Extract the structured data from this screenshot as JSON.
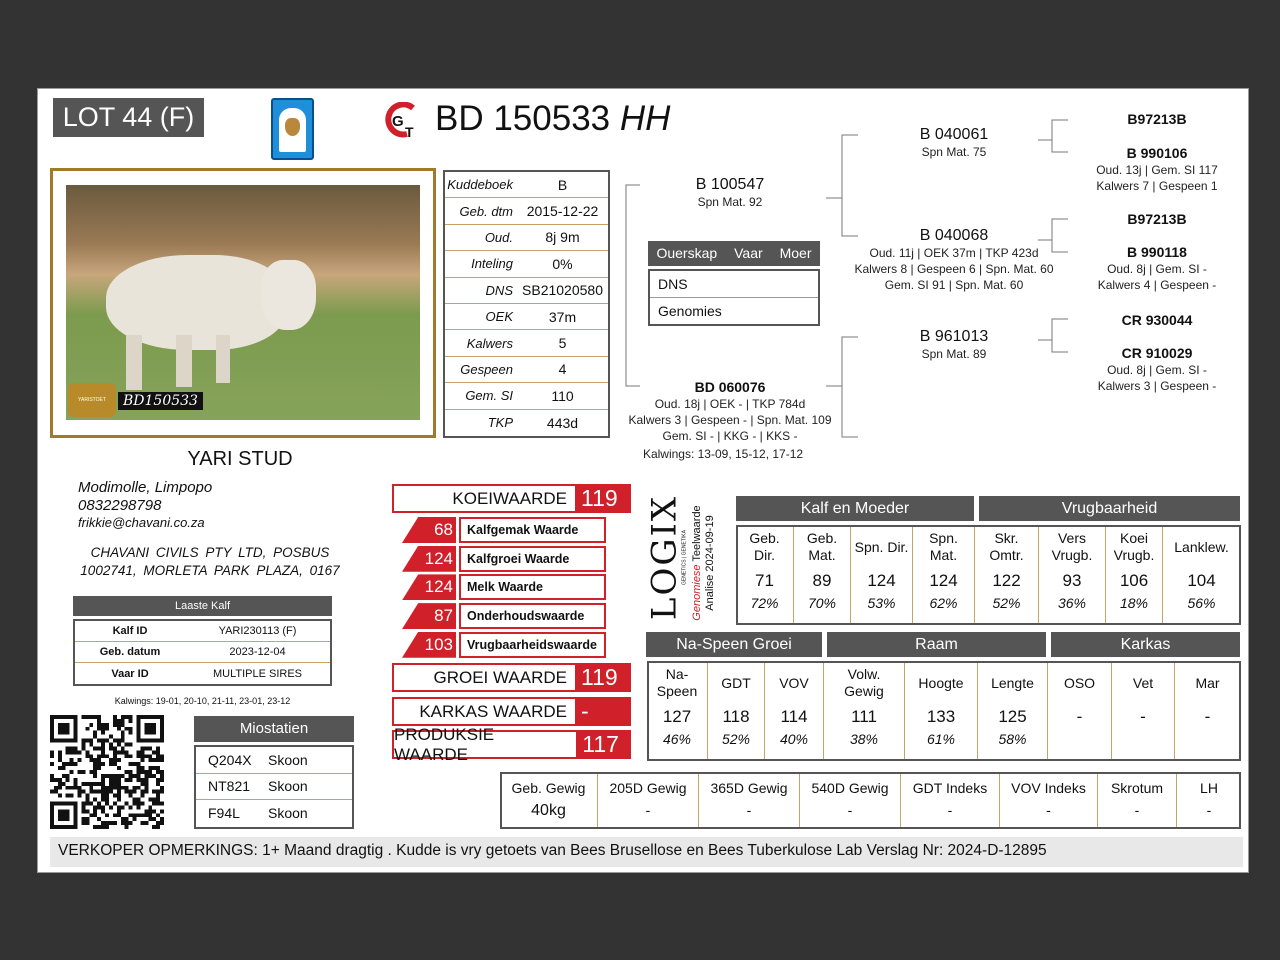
{
  "lot": "LOT 44 (F)",
  "title": {
    "id": "BD 150533",
    "suffix": "HH"
  },
  "photo": {
    "tag": "BD150533",
    "logo": "YARISTOET"
  },
  "info": [
    [
      "Kuddeboek",
      "B"
    ],
    [
      "Geb. dtm",
      "2015-12-22"
    ],
    [
      "Oud.",
      "8j 9m"
    ],
    [
      "Inteling",
      "0%"
    ],
    [
      "DNS",
      "SB21020580"
    ],
    [
      "OEK",
      "37m"
    ],
    [
      "Kalwers",
      "5"
    ],
    [
      "Gespeen",
      "4"
    ],
    [
      "Gem. SI",
      "110"
    ],
    [
      "TKP",
      "443d"
    ]
  ],
  "breeder": {
    "name": "YARI STUD",
    "location": "Modimolle, Limpopo",
    "phone": "0832298798",
    "email": "frikkie@chavani.co.za",
    "address1": "CHAVANI CIVILS PTY LTD, POSBUS",
    "address2": "1002741, MORLETA PARK PLAZA, 0167"
  },
  "last_calf": {
    "title": "Laaste Kalf",
    "rows": [
      [
        "Kalf ID",
        "YARI230113 (F)"
      ],
      [
        "Geb. datum",
        "2023-12-04"
      ],
      [
        "Vaar ID",
        "MULTIPLE SIRES"
      ]
    ],
    "calvings": "Kalwings: 19-01, 20-10, 21-11, 23-01, 23-12"
  },
  "myostatin": {
    "title": "Miostatien",
    "rows": [
      [
        "Q204X",
        "Skoon"
      ],
      [
        "NT821",
        "Skoon"
      ],
      [
        "F94L",
        "Skoon"
      ]
    ]
  },
  "parentage": {
    "headers": [
      "Ouerskap",
      "Vaar",
      "Moer"
    ],
    "rows": [
      "DNS",
      "Genomies"
    ]
  },
  "pedigree": {
    "sire": {
      "id": "B 100547",
      "lines": [
        "Spn Mat. 92"
      ]
    },
    "dam": {
      "id": "BD 060076",
      "lines": [
        "Oud. 18j | OEK - | TKP 784d",
        "Kalwers 3 | Gespeen - | Spn. Mat. 109",
        "Gem. SI - | KKG - | KKS -"
      ],
      "calvings": "Kalwings: 13-09, 15-12, 17-12"
    },
    "ss": {
      "id": "B 040061",
      "lines": [
        "Spn Mat. 75"
      ]
    },
    "sd": {
      "id": "B 040068",
      "lines": [
        "Oud. 11j | OEK 37m | TKP 423d",
        "Kalwers 8 | Gespeen 6 | Spn. Mat. 60",
        "Gem. SI 91 | Spn. Mat. 60"
      ]
    },
    "ds": {
      "id": "B 961013",
      "lines": [
        "Spn Mat. 89"
      ]
    },
    "sss": {
      "id": "B97213B",
      "lines": []
    },
    "ssd": {
      "id": "B 990106",
      "lines": [
        "Oud. 13j | Gem. SI 117",
        "Kalwers 7 | Gespeen 1"
      ]
    },
    "sds": {
      "id": "B97213B",
      "lines": []
    },
    "sdd": {
      "id": "B 990118",
      "lines": [
        "Oud. 8j | Gem. SI -",
        "Kalwers 4 | Gespeen -"
      ]
    },
    "dss": {
      "id": "CR 930044",
      "lines": []
    },
    "dsd": {
      "id": "CR 910029",
      "lines": [
        "Oud. 8j | Gem. SI -",
        "Kalwers 3 | Gespeen -"
      ]
    }
  },
  "values": {
    "koeiwaarde": {
      "label": "KOEIWAARDE",
      "value": "119"
    },
    "sub": [
      [
        "68",
        "Kalfgemak Waarde"
      ],
      [
        "124",
        "Kalfgroei Waarde"
      ],
      [
        "124",
        "Melk Waarde"
      ],
      [
        "87",
        "Onderhoudswaarde"
      ],
      [
        "103",
        "Vrugbaarheidswaarde"
      ]
    ],
    "groei": {
      "label": "GROEI WAARDE",
      "value": "119"
    },
    "karkas": {
      "label": "KARKAS WAARDE",
      "value": "-"
    },
    "produksie": {
      "label": "PRODUKSIE WAARDE",
      "value": "117"
    }
  },
  "logix": {
    "name": "LOGIX",
    "tagline": "GENETICS | GENETIKA",
    "line1a": "Genomiese",
    "line1b": "Teelwaarde",
    "line2": "Analise 2024-09-19"
  },
  "ebv_top": {
    "groups": [
      "Kalf en Moeder",
      "Vrugbaarheid"
    ],
    "cols": [
      [
        "Geb. Dir.",
        "71",
        "72%"
      ],
      [
        "Geb. Mat.",
        "89",
        "70%"
      ],
      [
        "Spn. Dir.",
        "124",
        "53%"
      ],
      [
        "Spn. Mat.",
        "124",
        "62%"
      ],
      [
        "Skr. Omtr.",
        "122",
        "52%"
      ],
      [
        "Vers Vrugb.",
        "93",
        "36%"
      ],
      [
        "Koei Vrugb.",
        "106",
        "18%"
      ],
      [
        "Lanklew.",
        "104",
        "56%"
      ]
    ]
  },
  "ebv_bottom": {
    "groups": [
      "Na-Speen Groei",
      "Raam",
      "Karkas"
    ],
    "cols": [
      [
        "Na-Speen",
        "127",
        "46%"
      ],
      [
        "GDT",
        "118",
        "52%"
      ],
      [
        "VOV",
        "114",
        "40%"
      ],
      [
        "Volw. Gewig",
        "111",
        "38%"
      ],
      [
        "Hoogte",
        "133",
        "61%"
      ],
      [
        "Lengte",
        "125",
        "58%"
      ],
      [
        "OSO",
        "-",
        ""
      ],
      [
        "Vet",
        "-",
        ""
      ],
      [
        "Mar",
        "-",
        ""
      ]
    ]
  },
  "weights": [
    [
      "Geb. Gewig",
      "40kg"
    ],
    [
      "205D Gewig",
      "-"
    ],
    [
      "365D Gewig",
      "-"
    ],
    [
      "540D Gewig",
      "-"
    ],
    [
      "GDT Indeks",
      "-"
    ],
    [
      "VOV Indeks",
      "-"
    ],
    [
      "Skrotum",
      "-"
    ],
    [
      "LH",
      "-"
    ]
  ],
  "remarks": {
    "label": "VERKOPER OPMERKINGS:",
    "text": "1+ Maand dragtig . Kudde is vry getoets van Bees Brusellose en Bees Tuberkulose Lab Verslag Nr: 2024-D-12895"
  },
  "colors": {
    "accent": "#d0202a",
    "header": "#555555",
    "frame": "#a07a2a",
    "divider": "#c4a46a"
  }
}
